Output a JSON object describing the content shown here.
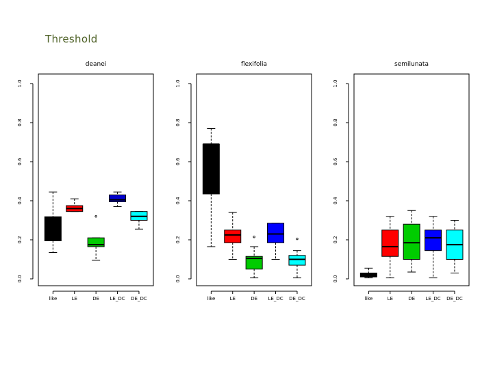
{
  "slide": {
    "title": "Threshold"
  },
  "chart_data": [
    {
      "type": "boxplot",
      "title": "deanei",
      "categories": [
        "like",
        "LE",
        "DE",
        "LE_DC",
        "DE_DC"
      ],
      "ylim": [
        0,
        1.0
      ],
      "yticks": [
        0.0,
        0.2,
        0.4,
        0.6,
        0.8,
        1.0
      ],
      "ytick_labels": [
        "0.0",
        "0.2",
        "0.4",
        "0.6",
        "0.8",
        "1.0"
      ],
      "boxes": [
        {
          "name": "like",
          "color": "#000000",
          "median_color": "#000000",
          "whisker_low": 0.135,
          "q1": 0.195,
          "median": 0.25,
          "q3": 0.318,
          "whisker_high": 0.445,
          "outliers": []
        },
        {
          "name": "LE",
          "color": "#ff0000",
          "median_color": "#000000",
          "whisker_low": 0.345,
          "q1": 0.345,
          "median": 0.36,
          "q3": 0.375,
          "whisker_high": 0.41,
          "outliers": []
        },
        {
          "name": "DE",
          "color": "#00cc00",
          "median_color": "#000000",
          "whisker_low": 0.095,
          "q1": 0.165,
          "median": 0.175,
          "q3": 0.21,
          "whisker_high": 0.21,
          "outliers": [
            0.32
          ]
        },
        {
          "name": "LE_DC",
          "color": "#0000cc",
          "median_color": "#000000",
          "whisker_low": 0.37,
          "q1": 0.395,
          "median": 0.405,
          "q3": 0.43,
          "whisker_high": 0.445,
          "outliers": []
        },
        {
          "name": "DE_DC",
          "color": "#00ffff",
          "median_color": "#000000",
          "whisker_low": 0.255,
          "q1": 0.3,
          "median": 0.32,
          "q3": 0.345,
          "whisker_high": 0.345,
          "outliers": []
        }
      ]
    },
    {
      "type": "boxplot",
      "title": "flexifolia",
      "categories": [
        "like",
        "LE",
        "DE",
        "LE_DC",
        "DE_DC"
      ],
      "ylim": [
        0,
        1.0
      ],
      "yticks": [
        0.0,
        0.2,
        0.4,
        0.6,
        0.8,
        1.0
      ],
      "ytick_labels": [
        "0.0",
        "0.2",
        "0.4",
        "0.6",
        "0.8",
        "1.0"
      ],
      "boxes": [
        {
          "name": "like",
          "color": "#000000",
          "median_color": "#000000",
          "whisker_low": 0.165,
          "q1": 0.435,
          "median": 0.69,
          "q3": 0.69,
          "whisker_high": 0.77,
          "outliers": []
        },
        {
          "name": "LE",
          "color": "#ff0000",
          "median_color": "#000000",
          "whisker_low": 0.1,
          "q1": 0.185,
          "median": 0.225,
          "q3": 0.25,
          "whisker_high": 0.34,
          "outliers": []
        },
        {
          "name": "DE",
          "color": "#00cc00",
          "median_color": "#000000",
          "whisker_low": 0.005,
          "q1": 0.05,
          "median": 0.105,
          "q3": 0.115,
          "whisker_high": 0.165,
          "outliers": [
            0.215
          ]
        },
        {
          "name": "LE_DC",
          "color": "#0000ff",
          "median_color": "#000000",
          "whisker_low": 0.1,
          "q1": 0.185,
          "median": 0.23,
          "q3": 0.285,
          "whisker_high": 0.285,
          "outliers": []
        },
        {
          "name": "DE_DC",
          "color": "#00ffff",
          "median_color": "#000000",
          "whisker_low": 0.005,
          "q1": 0.07,
          "median": 0.1,
          "q3": 0.12,
          "whisker_high": 0.145,
          "outliers": [
            0.205
          ]
        }
      ]
    },
    {
      "type": "boxplot",
      "title": "semilunata",
      "categories": [
        "like",
        "LE",
        "DE",
        "LE_DC",
        "DE_DC"
      ],
      "ylim": [
        0,
        1.0
      ],
      "yticks": [
        0.0,
        0.2,
        0.4,
        0.6,
        0.8,
        1.0
      ],
      "ytick_labels": [
        "0.0",
        "0.2",
        "0.4",
        "0.6",
        "0.8",
        "1.0"
      ],
      "boxes": [
        {
          "name": "like",
          "color": "#000000",
          "median_color": "#000000",
          "whisker_low": 0.005,
          "q1": 0.01,
          "median": 0.02,
          "q3": 0.03,
          "whisker_high": 0.055,
          "outliers": []
        },
        {
          "name": "LE",
          "color": "#ff0000",
          "median_color": "#000000",
          "whisker_low": 0.005,
          "q1": 0.115,
          "median": 0.165,
          "q3": 0.25,
          "whisker_high": 0.32,
          "outliers": []
        },
        {
          "name": "DE",
          "color": "#00cc00",
          "median_color": "#000000",
          "whisker_low": 0.035,
          "q1": 0.1,
          "median": 0.185,
          "q3": 0.28,
          "whisker_high": 0.35,
          "outliers": []
        },
        {
          "name": "LE_DC",
          "color": "#0000ff",
          "median_color": "#000000",
          "whisker_low": 0.005,
          "q1": 0.145,
          "median": 0.21,
          "q3": 0.25,
          "whisker_high": 0.32,
          "outliers": []
        },
        {
          "name": "DE_DC",
          "color": "#00ffff",
          "median_color": "#000000",
          "whisker_low": 0.03,
          "q1": 0.1,
          "median": 0.175,
          "q3": 0.25,
          "whisker_high": 0.3,
          "outliers": []
        }
      ]
    }
  ]
}
